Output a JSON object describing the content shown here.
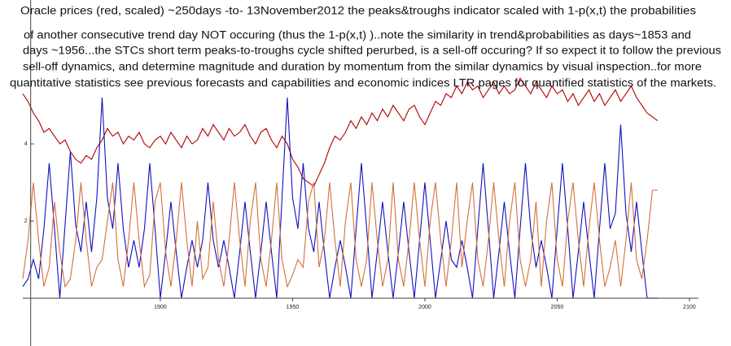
{
  "chart_data": {
    "type": "line",
    "annotation": [
      "Oracle     prices (red, scaled) ~250days -to- 13November2012 the peaks&troughs indicator scaled with 1-p(x,t) the probabilities",
      "of another consecutive trend day NOT occuring (thus the 1-p(x,t) )..note the similarity in trend&probabilities as days~1853 and",
      "days ~1956...the STCs short term peaks-to-troughs cycle shifted perurbed, is a sell-off occuring? If so expect it to follow the previous",
      "sell-off dynamics, and determine magnitude and duration by momentum from the similar dynamics by visual inspection..for more",
      "quantitative statistics see previous forecasts and capabilities and economic indices LTR pages for quantified statistics of the markets."
    ],
    "x": [
      1848,
      1850,
      1852,
      1854,
      1856,
      1858,
      1860,
      1862,
      1864,
      1866,
      1868,
      1870,
      1872,
      1874,
      1876,
      1878,
      1880,
      1882,
      1884,
      1886,
      1888,
      1890,
      1892,
      1894,
      1896,
      1898,
      1900,
      1902,
      1904,
      1906,
      1908,
      1910,
      1912,
      1914,
      1916,
      1918,
      1920,
      1922,
      1924,
      1926,
      1928,
      1930,
      1932,
      1934,
      1936,
      1938,
      1940,
      1942,
      1944,
      1946,
      1948,
      1950,
      1952,
      1954,
      1956,
      1958,
      1960,
      1962,
      1964,
      1966,
      1968,
      1970,
      1972,
      1974,
      1976,
      1978,
      1980,
      1982,
      1984,
      1986,
      1988,
      1990,
      1992,
      1994,
      1996,
      1998,
      2000,
      2002,
      2004,
      2006,
      2008,
      2010,
      2012,
      2014,
      2016,
      2018,
      2020,
      2022,
      2024,
      2026,
      2028,
      2030,
      2032,
      2034,
      2036,
      2038,
      2040,
      2042,
      2044,
      2046,
      2048,
      2050,
      2052,
      2054,
      2056,
      2058,
      2060,
      2062,
      2064,
      2066,
      2068,
      2070,
      2072,
      2074,
      2076,
      2078,
      2080,
      2082,
      2084,
      2086,
      2088
    ],
    "series": [
      {
        "color": "#b00000",
        "values": [
          5.3,
          5.1,
          4.8,
          4.6,
          4.3,
          4.4,
          4.2,
          4.0,
          4.1,
          3.8,
          3.6,
          3.5,
          3.7,
          3.6,
          3.9,
          4.1,
          4.4,
          4.2,
          4.3,
          4.0,
          4.2,
          4.1,
          4.3,
          4.0,
          3.9,
          4.1,
          4.2,
          4.0,
          4.3,
          4.1,
          3.9,
          4.2,
          4.0,
          4.1,
          4.4,
          4.2,
          4.5,
          4.3,
          4.1,
          4.4,
          4.2,
          4.3,
          4.5,
          4.2,
          4.0,
          4.3,
          4.4,
          4.1,
          3.9,
          4.2,
          4.0,
          3.6,
          3.4,
          3.1,
          3.0,
          2.9,
          3.2,
          3.5,
          3.9,
          4.2,
          4.1,
          4.3,
          4.6,
          4.4,
          4.7,
          4.5,
          4.8,
          4.6,
          4.9,
          4.7,
          5.0,
          4.8,
          4.6,
          4.9,
          5.0,
          4.7,
          4.5,
          4.8,
          5.1,
          5.0,
          5.3,
          5.2,
          5.5,
          5.3,
          5.6,
          5.4,
          5.5,
          5.2,
          5.4,
          5.6,
          5.3,
          5.5,
          5.3,
          5.4,
          5.7,
          5.5,
          5.3,
          5.6,
          5.4,
          5.2,
          5.5,
          5.3,
          5.4,
          5.1,
          5.3,
          5.0,
          5.2,
          5.4,
          5.1,
          5.3,
          5.0,
          5.2,
          5.4,
          5.1,
          5.3,
          5.5,
          5.2,
          5.0,
          4.8,
          4.7,
          4.6
        ]
      },
      {
        "color": "#1010c0",
        "values": [
          0.3,
          0.5,
          1.0,
          0.5,
          1.8,
          3.5,
          1.8,
          0,
          1.9,
          3.8,
          1.9,
          1.2,
          2.5,
          1.2,
          2.6,
          5.2,
          2.6,
          1.8,
          3.5,
          1.8,
          0.8,
          1.5,
          0.8,
          1.8,
          3.5,
          1.8,
          0,
          1.2,
          2.5,
          1.2,
          0,
          0.8,
          1.5,
          0.8,
          1.5,
          3.0,
          1.5,
          0.8,
          1.5,
          0.8,
          0,
          1.2,
          2.5,
          1.2,
          0,
          1.2,
          2.5,
          1.2,
          0,
          2.6,
          5.2,
          2.6,
          1.8,
          3.5,
          1.8,
          1.2,
          2.5,
          1.2,
          0,
          0.8,
          1.5,
          0.8,
          0,
          1.8,
          3.5,
          1.8,
          0,
          1.2,
          2.5,
          1.2,
          0,
          1.2,
          2.5,
          1.2,
          0,
          1.5,
          3.0,
          1.5,
          0,
          1.0,
          2.0,
          1.0,
          0.8,
          1.5,
          0.8,
          0,
          1.8,
          3.5,
          1.8,
          0,
          1.2,
          2.5,
          1.2,
          0,
          1.8,
          3.5,
          1.8,
          0.8,
          1.5,
          0.8,
          0,
          1.8,
          3.5,
          1.8,
          0,
          1.2,
          2.5,
          1.2,
          0,
          1.8,
          3.5,
          1.8,
          2.2,
          4.5,
          2.2,
          1.2,
          2.5,
          1.2,
          0,
          0,
          0
        ]
      },
      {
        "color": "#d4703a",
        "values": [
          0.5,
          1.5,
          3.0,
          1.5,
          0.3,
          0.8,
          2.5,
          1.2,
          0.3,
          0.5,
          1.5,
          3.0,
          1.5,
          0.3,
          0.8,
          1.0,
          2.0,
          3.0,
          1.0,
          0.3,
          1.5,
          3.0,
          1.5,
          0.3,
          0.6,
          2.5,
          3.0,
          1.2,
          0.3,
          1.5,
          3.0,
          1.5,
          0.3,
          2.0,
          0.5,
          0.8,
          2.5,
          1.0,
          0.3,
          1.5,
          3.0,
          1.5,
          0.3,
          2.0,
          3.0,
          1.0,
          0.3,
          1.5,
          3.0,
          1.0,
          0.3,
          0.6,
          1.0,
          0.8,
          2.5,
          3.0,
          0.8,
          1.5,
          3.0,
          1.5,
          0.3,
          2.0,
          3.0,
          1.0,
          0.3,
          1.0,
          3.0,
          1.5,
          0.3,
          1.0,
          3.0,
          1.0,
          0.3,
          1.5,
          3.0,
          1.5,
          0.3,
          2.0,
          3.0,
          1.5,
          0.3,
          1.5,
          3.0,
          0.8,
          2.0,
          3.0,
          1.0,
          0.3,
          1.5,
          3.0,
          1.5,
          0.3,
          2.0,
          3.0,
          1.0,
          0.3,
          1.0,
          2.5,
          0.3,
          2.0,
          3.0,
          1.0,
          0.3,
          2.0,
          3.0,
          1.5,
          0.3,
          1.8,
          3.0,
          1.5,
          0.3,
          0.8,
          1.5,
          0.3,
          1.5,
          3.0,
          1.0,
          0.5,
          1.5,
          2.8,
          2.8
        ]
      }
    ],
    "xlim": [
      1839.4,
      2115.7
    ],
    "ylim": [
      -1.24,
      7.73
    ],
    "xticks": [
      1900,
      1950,
      2000,
      2050,
      2100
    ],
    "yticks": [
      2,
      4
    ]
  }
}
